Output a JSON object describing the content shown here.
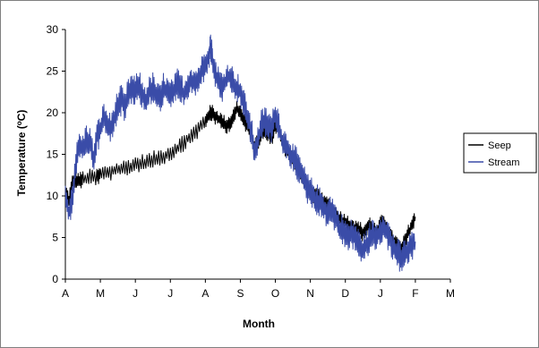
{
  "chart_data": {
    "type": "line",
    "xlabel": "Month",
    "ylabel": "Temperature (°C)",
    "ylabel_parts": [
      "Temperature (",
      "o",
      "C)"
    ],
    "x_tick_labels": [
      "A",
      "M",
      "J",
      "J",
      "A",
      "S",
      "O",
      "N",
      "D",
      "J",
      "F",
      "M"
    ],
    "yticks": [
      0,
      5,
      10,
      15,
      20,
      25,
      30
    ],
    "ylim": [
      0,
      30
    ],
    "x_unit": "months since start of April",
    "xlim": [
      0,
      11
    ],
    "grid": false,
    "legend_position": "right",
    "series": [
      {
        "name": "Seep",
        "color": "#000000",
        "points": [
          [
            0.0,
            10.5
          ],
          [
            0.1,
            9.5
          ],
          [
            0.2,
            11.5
          ],
          [
            0.3,
            12.0
          ],
          [
            0.4,
            11.8
          ],
          [
            0.5,
            12.0
          ],
          [
            0.7,
            12.2
          ],
          [
            0.9,
            12.3
          ],
          [
            1.0,
            12.5
          ],
          [
            1.2,
            12.8
          ],
          [
            1.4,
            13.0
          ],
          [
            1.6,
            13.2
          ],
          [
            1.8,
            13.5
          ],
          [
            2.0,
            13.8
          ],
          [
            2.2,
            14.0
          ],
          [
            2.4,
            14.2
          ],
          [
            2.6,
            14.5
          ],
          [
            2.8,
            14.8
          ],
          [
            3.0,
            15.2
          ],
          [
            3.2,
            15.8
          ],
          [
            3.4,
            16.5
          ],
          [
            3.6,
            17.2
          ],
          [
            3.8,
            18.0
          ],
          [
            4.0,
            19.0
          ],
          [
            4.1,
            19.8
          ],
          [
            4.2,
            20.0
          ],
          [
            4.3,
            19.5
          ],
          [
            4.4,
            19.2
          ],
          [
            4.5,
            18.8
          ],
          [
            4.6,
            18.5
          ],
          [
            4.7,
            18.8
          ],
          [
            4.8,
            19.5
          ],
          [
            4.9,
            20.5
          ],
          [
            5.0,
            20.0
          ],
          [
            5.1,
            19.0
          ],
          [
            5.2,
            18.5
          ],
          [
            5.3,
            17.5
          ],
          [
            5.4,
            16.0
          ],
          [
            5.5,
            16.5
          ],
          [
            5.6,
            17.5
          ],
          [
            5.7,
            18.0
          ],
          [
            5.8,
            17.5
          ],
          [
            5.9,
            17.0
          ],
          [
            6.0,
            18.5
          ],
          [
            6.1,
            18.0
          ],
          [
            6.2,
            16.5
          ],
          [
            6.3,
            15.5
          ],
          [
            6.4,
            15.0
          ],
          [
            6.5,
            14.5
          ],
          [
            6.6,
            14.0
          ],
          [
            6.7,
            13.0
          ],
          [
            6.8,
            12.0
          ],
          [
            6.9,
            11.0
          ],
          [
            7.0,
            10.5
          ],
          [
            7.1,
            10.0
          ],
          [
            7.2,
            10.0
          ],
          [
            7.3,
            9.5
          ],
          [
            7.4,
            9.0
          ],
          [
            7.5,
            9.0
          ],
          [
            7.6,
            8.5
          ],
          [
            7.7,
            8.0
          ],
          [
            7.8,
            7.5
          ],
          [
            7.9,
            7.0
          ],
          [
            8.0,
            7.0
          ],
          [
            8.1,
            6.5
          ],
          [
            8.2,
            6.5
          ],
          [
            8.3,
            6.0
          ],
          [
            8.4,
            6.0
          ],
          [
            8.5,
            5.5
          ],
          [
            8.6,
            6.0
          ],
          [
            8.7,
            6.5
          ],
          [
            8.8,
            6.0
          ],
          [
            8.9,
            5.5
          ],
          [
            9.0,
            6.5
          ],
          [
            9.1,
            7.0
          ],
          [
            9.2,
            6.0
          ],
          [
            9.3,
            5.0
          ],
          [
            9.4,
            4.5
          ],
          [
            9.5,
            4.0
          ],
          [
            9.6,
            3.5
          ],
          [
            9.7,
            4.5
          ],
          [
            9.8,
            5.5
          ],
          [
            9.9,
            6.5
          ],
          [
            10.0,
            7.5
          ]
        ]
      },
      {
        "name": "Stream",
        "color": "#3a4ca8",
        "points": [
          [
            0.0,
            9.5
          ],
          [
            0.1,
            8.0
          ],
          [
            0.2,
            10.0
          ],
          [
            0.3,
            14.0
          ],
          [
            0.4,
            16.0
          ],
          [
            0.5,
            15.5
          ],
          [
            0.6,
            17.0
          ],
          [
            0.7,
            16.5
          ],
          [
            0.8,
            14.5
          ],
          [
            0.9,
            17.0
          ],
          [
            1.0,
            18.0
          ],
          [
            1.1,
            19.5
          ],
          [
            1.2,
            18.5
          ],
          [
            1.3,
            18.0
          ],
          [
            1.4,
            19.5
          ],
          [
            1.5,
            21.0
          ],
          [
            1.6,
            21.5
          ],
          [
            1.7,
            20.5
          ],
          [
            1.8,
            22.5
          ],
          [
            1.9,
            23.0
          ],
          [
            2.0,
            22.5
          ],
          [
            2.1,
            23.5
          ],
          [
            2.2,
            22.0
          ],
          [
            2.3,
            21.5
          ],
          [
            2.4,
            22.5
          ],
          [
            2.5,
            23.0
          ],
          [
            2.6,
            22.0
          ],
          [
            2.7,
            21.5
          ],
          [
            2.8,
            23.0
          ],
          [
            2.9,
            22.5
          ],
          [
            3.0,
            22.0
          ],
          [
            3.1,
            22.5
          ],
          [
            3.2,
            23.5
          ],
          [
            3.3,
            23.0
          ],
          [
            3.4,
            22.0
          ],
          [
            3.5,
            23.5
          ],
          [
            3.6,
            24.0
          ],
          [
            3.7,
            23.5
          ],
          [
            3.8,
            24.0
          ],
          [
            3.9,
            25.0
          ],
          [
            4.0,
            26.0
          ],
          [
            4.1,
            27.0
          ],
          [
            4.15,
            28.0
          ],
          [
            4.2,
            26.5
          ],
          [
            4.3,
            24.5
          ],
          [
            4.4,
            23.5
          ],
          [
            4.5,
            23.0
          ],
          [
            4.6,
            24.0
          ],
          [
            4.7,
            24.5
          ],
          [
            4.8,
            23.5
          ],
          [
            4.9,
            23.0
          ],
          [
            5.0,
            22.5
          ],
          [
            5.1,
            21.0
          ],
          [
            5.2,
            19.5
          ],
          [
            5.3,
            18.0
          ],
          [
            5.4,
            15.5
          ],
          [
            5.5,
            16.5
          ],
          [
            5.6,
            18.5
          ],
          [
            5.7,
            19.0
          ],
          [
            5.8,
            18.5
          ],
          [
            5.9,
            18.0
          ],
          [
            6.0,
            20.0
          ],
          [
            6.1,
            18.5
          ],
          [
            6.2,
            16.5
          ],
          [
            6.3,
            16.0
          ],
          [
            6.4,
            15.5
          ],
          [
            6.5,
            14.5
          ],
          [
            6.6,
            14.0
          ],
          [
            6.7,
            13.0
          ],
          [
            6.8,
            12.0
          ],
          [
            6.9,
            11.0
          ],
          [
            7.0,
            10.5
          ],
          [
            7.1,
            10.0
          ],
          [
            7.2,
            9.5
          ],
          [
            7.3,
            9.0
          ],
          [
            7.4,
            8.5
          ],
          [
            7.5,
            8.0
          ],
          [
            7.6,
            8.5
          ],
          [
            7.7,
            7.5
          ],
          [
            7.8,
            6.5
          ],
          [
            7.9,
            6.0
          ],
          [
            8.0,
            5.5
          ],
          [
            8.1,
            5.0
          ],
          [
            8.2,
            5.5
          ],
          [
            8.3,
            5.0
          ],
          [
            8.4,
            4.0
          ],
          [
            8.5,
            3.5
          ],
          [
            8.6,
            4.0
          ],
          [
            8.7,
            5.0
          ],
          [
            8.8,
            5.5
          ],
          [
            8.9,
            5.0
          ],
          [
            9.0,
            6.0
          ],
          [
            9.1,
            6.5
          ],
          [
            9.2,
            5.5
          ],
          [
            9.3,
            4.5
          ],
          [
            9.4,
            3.5
          ],
          [
            9.5,
            3.0
          ],
          [
            9.6,
            2.5
          ],
          [
            9.7,
            3.0
          ],
          [
            9.8,
            3.5
          ],
          [
            9.9,
            4.0
          ],
          [
            10.0,
            4.5
          ]
        ]
      }
    ]
  }
}
